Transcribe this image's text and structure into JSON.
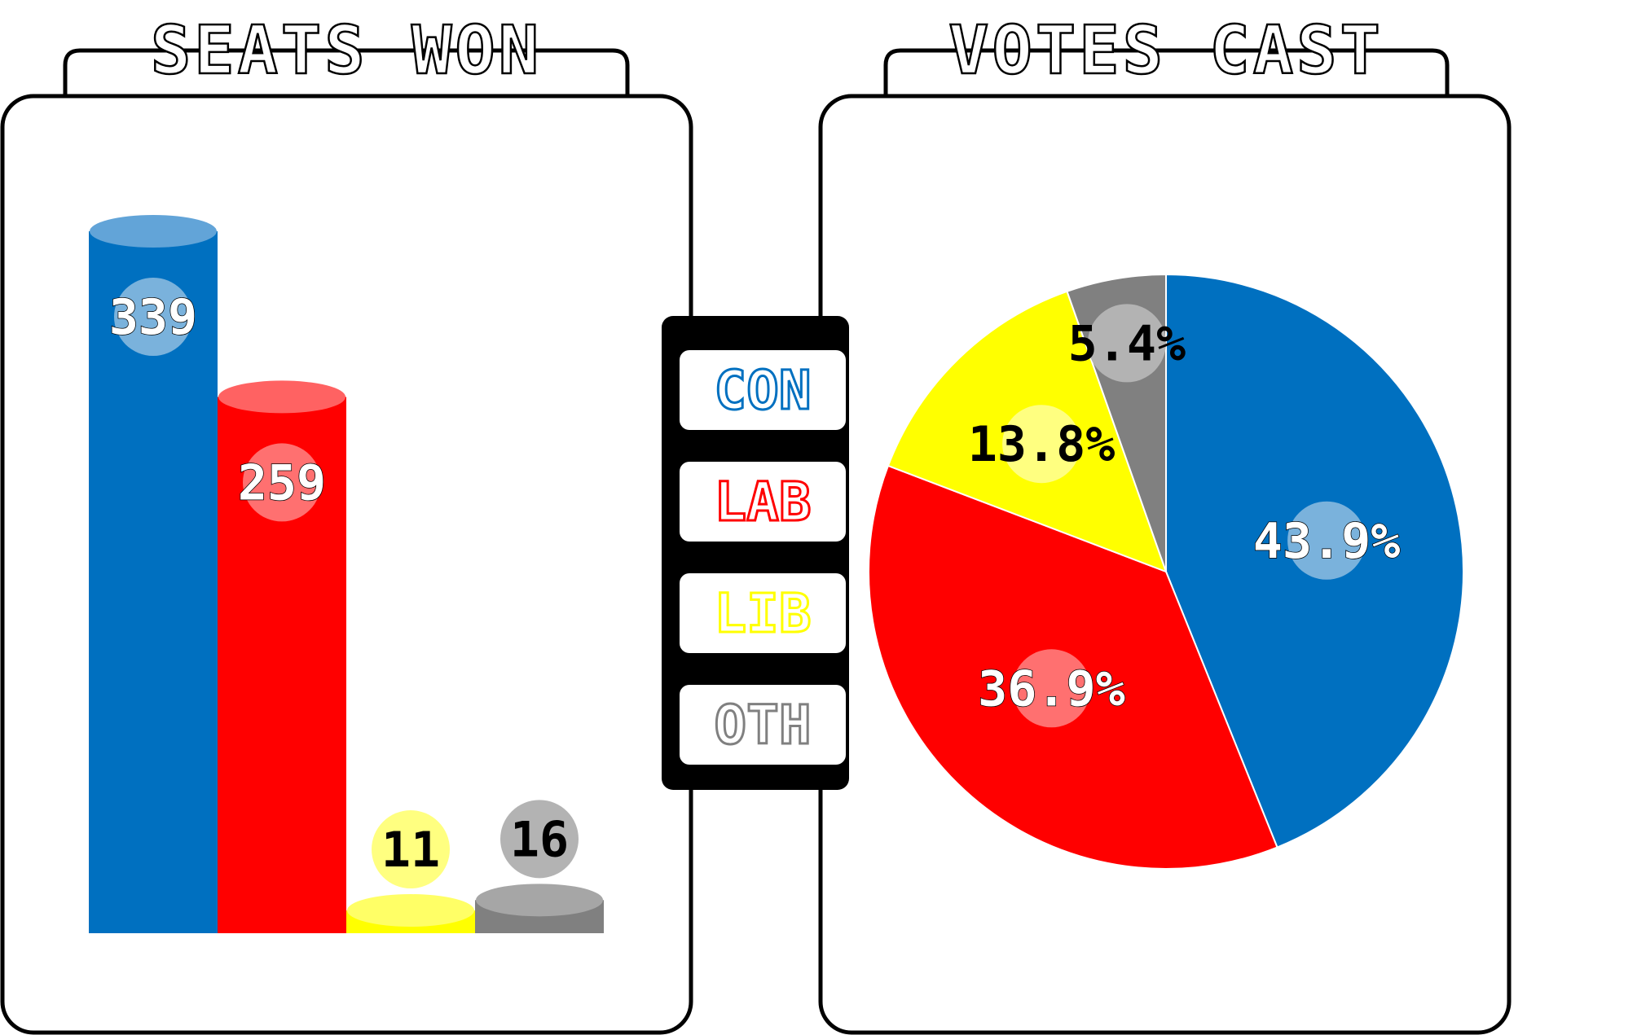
{
  "colors": {
    "CON": "#0070c0",
    "LAB": "#ff0000",
    "LIB": "#ffff00",
    "OTH": "#808080"
  },
  "chart_data": [
    {
      "type": "bar",
      "title": "SEATS WON",
      "categories": [
        "CON",
        "LAB",
        "LIB",
        "OTH"
      ],
      "values": [
        339,
        259,
        11,
        16
      ],
      "labels": [
        "339",
        "259",
        "11",
        "16"
      ],
      "ylim": [
        0,
        339
      ],
      "grid": false,
      "legend": "center"
    },
    {
      "type": "pie",
      "title": "VOTES CAST",
      "categories": [
        "CON",
        "LAB",
        "LIB",
        "OTH"
      ],
      "values": [
        43.9,
        36.9,
        13.8,
        5.4
      ],
      "labels": [
        "43.9%",
        "36.9%",
        "13.8%",
        "5.4%"
      ],
      "legend": "center"
    }
  ],
  "legend": {
    "items": [
      "CON",
      "LAB",
      "LIB",
      "OTH"
    ]
  }
}
